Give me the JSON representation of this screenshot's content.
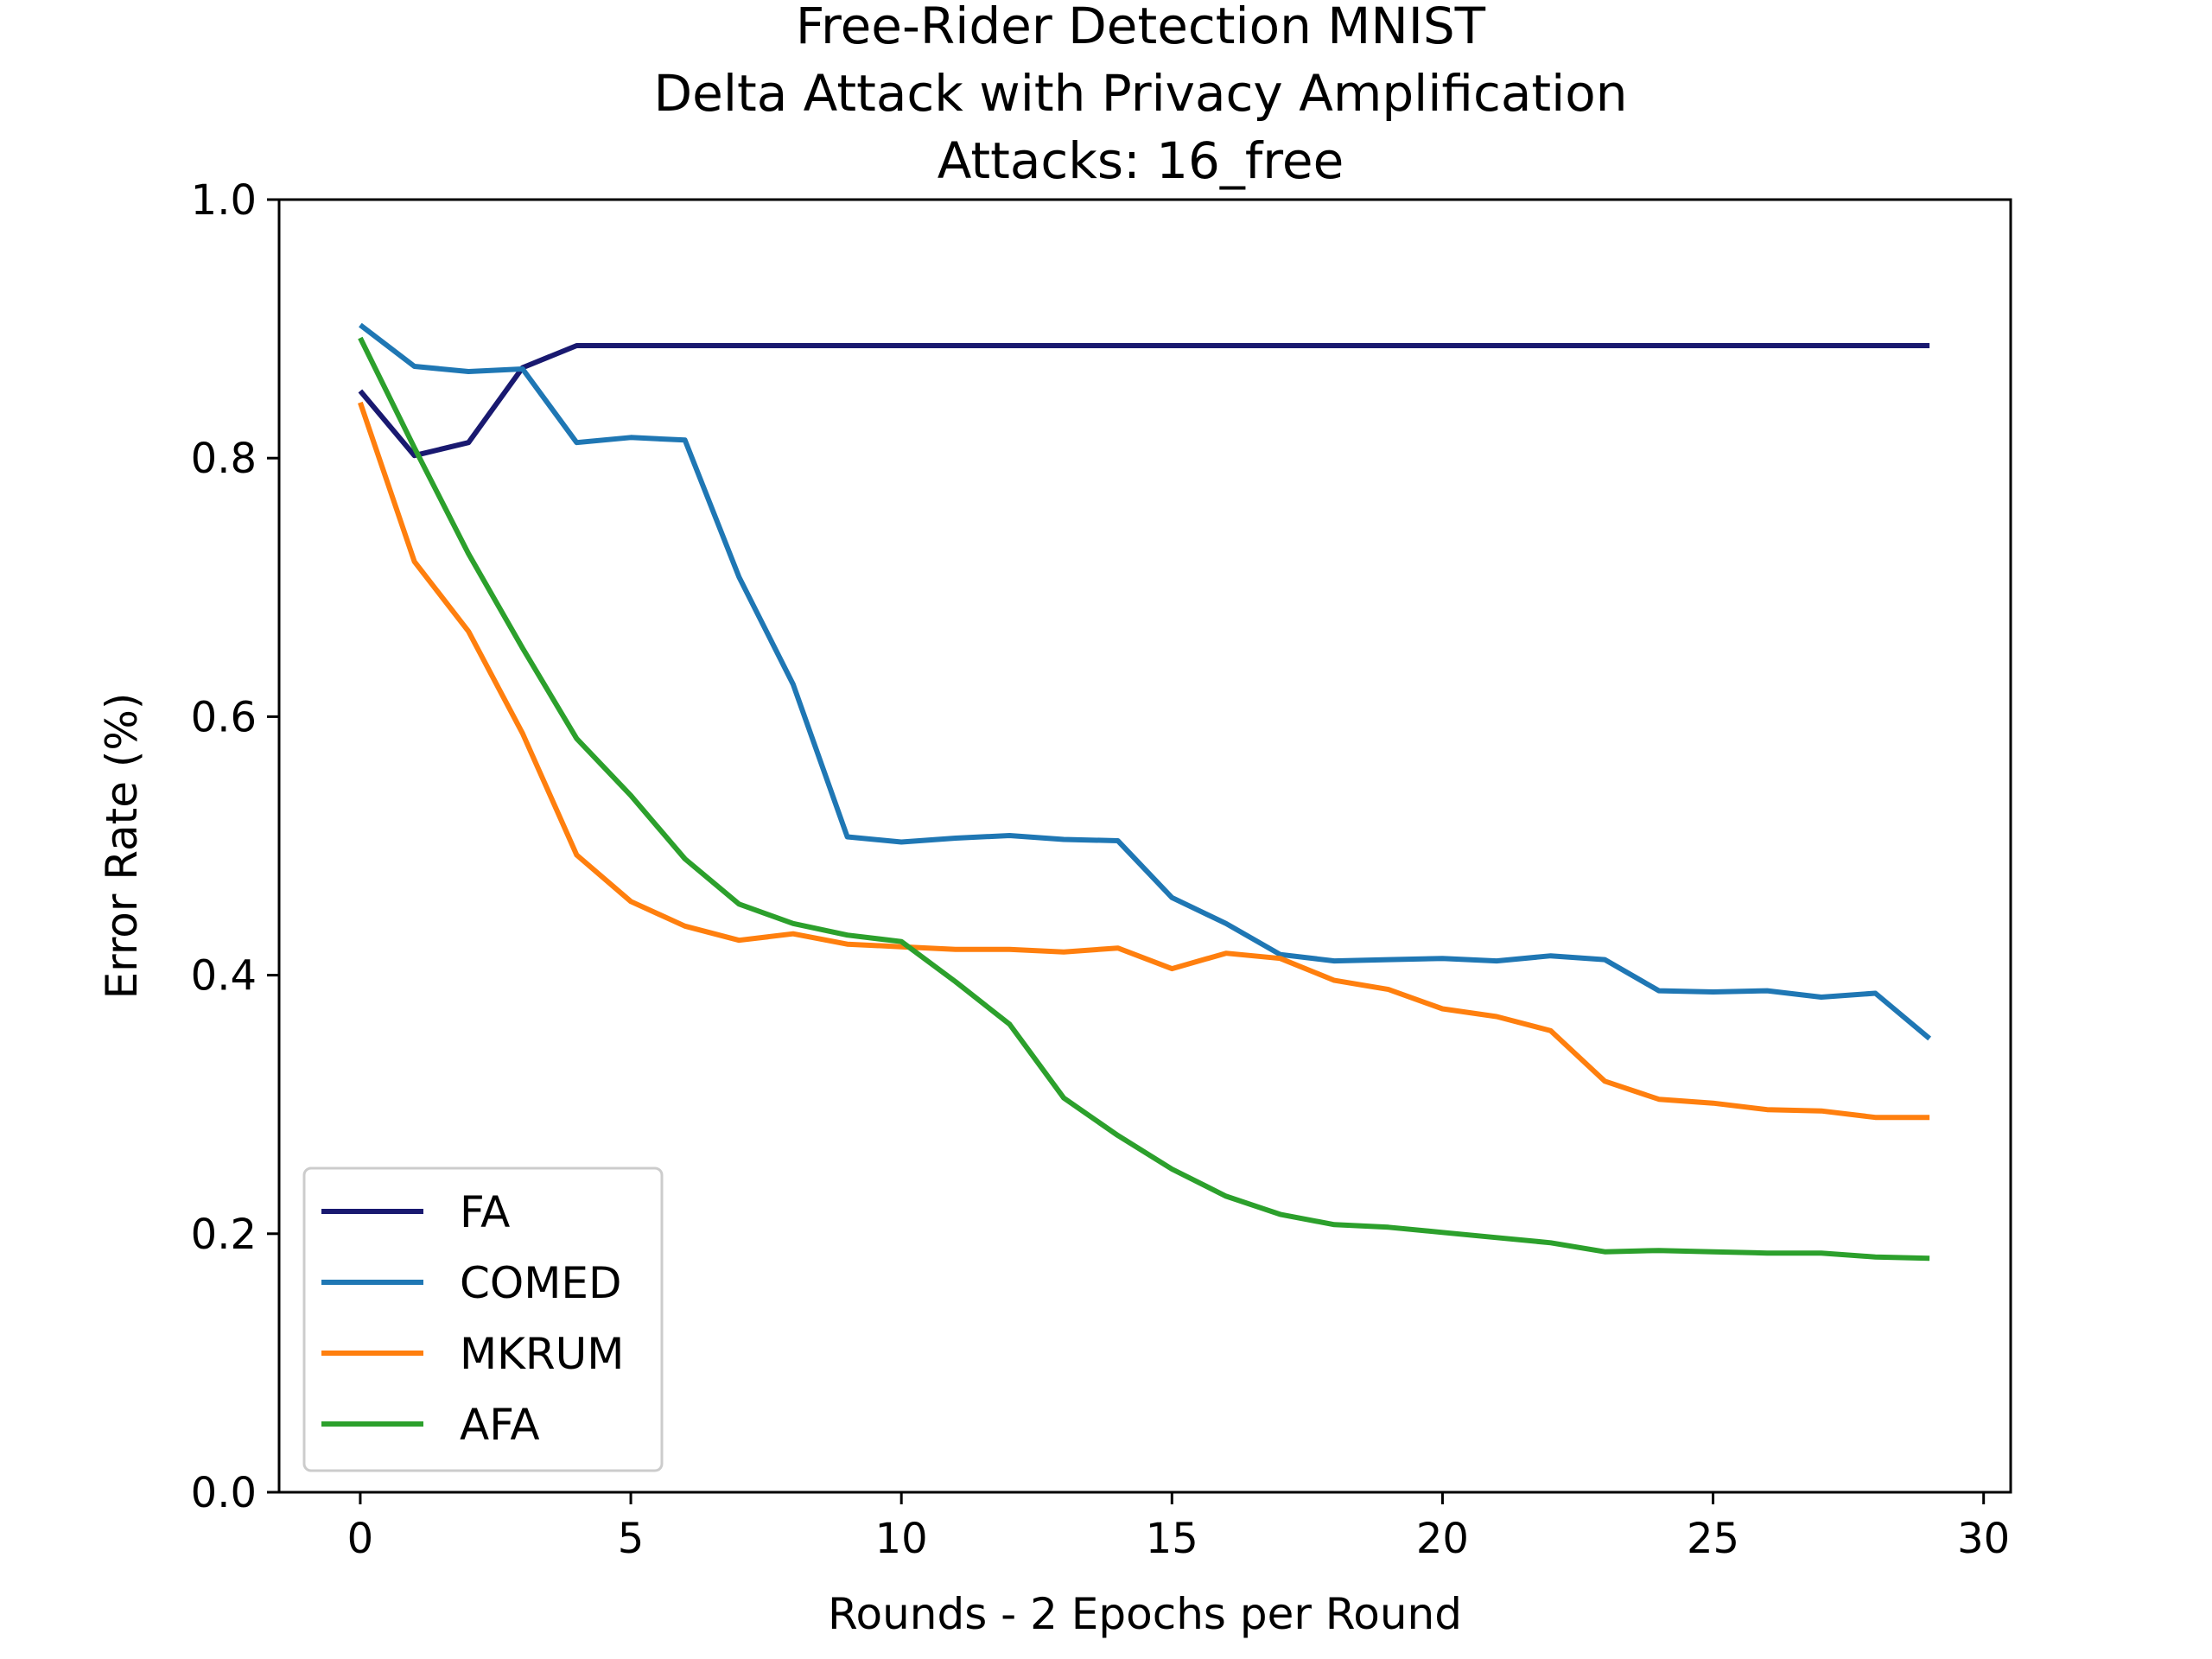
{
  "chart_data": {
    "type": "line",
    "title": [
      "Free-Rider Detection MNIST",
      "Delta Attack with Privacy Amplification",
      "Attacks: 16_free"
    ],
    "xlabel": "Rounds - 2 Epochs per Round",
    "ylabel": "Error Rate (%)",
    "xlim": [
      -1.5,
      30.5
    ],
    "ylim": [
      0.0,
      1.0
    ],
    "xticks": [
      0,
      5,
      10,
      15,
      20,
      25,
      30
    ],
    "xtick_labels": [
      "0",
      "5",
      "10",
      "15",
      "20",
      "25",
      "30"
    ],
    "yticks": [
      0.0,
      0.2,
      0.4,
      0.6,
      0.8,
      1.0
    ],
    "ytick_labels": [
      "0.0",
      "0.2",
      "0.4",
      "0.6",
      "0.8",
      "1.0"
    ],
    "grid": false,
    "legend_position": "lower-left",
    "x": [
      0,
      1,
      2,
      3,
      4,
      5,
      6,
      7,
      8,
      9,
      10,
      11,
      12,
      13,
      14,
      15,
      16,
      17,
      18,
      19,
      20,
      21,
      22,
      23,
      24,
      25,
      26,
      27,
      28,
      29
    ],
    "series": [
      {
        "name": "FA",
        "color": "#191970",
        "values": [
          0.852,
          0.802,
          0.812,
          0.87,
          0.887,
          0.887,
          0.887,
          0.887,
          0.887,
          0.887,
          0.887,
          0.887,
          0.887,
          0.887,
          0.887,
          0.887,
          0.887,
          0.887,
          0.887,
          0.887,
          0.887,
          0.887,
          0.887,
          0.887,
          0.887,
          0.887,
          0.887,
          0.887,
          0.887,
          0.887
        ]
      },
      {
        "name": "COMED",
        "color": "#1f77b4",
        "values": [
          0.903,
          0.871,
          0.867,
          0.869,
          0.812,
          0.816,
          0.814,
          0.708,
          0.625,
          0.507,
          0.503,
          0.506,
          0.508,
          0.505,
          0.504,
          0.46,
          0.44,
          0.416,
          0.411,
          0.412,
          0.413,
          0.411,
          0.415,
          0.412,
          0.388,
          0.387,
          0.388,
          0.383,
          0.386,
          0.351
        ]
      },
      {
        "name": "MKRUM",
        "color": "#ff7f0e",
        "values": [
          0.843,
          0.72,
          0.666,
          0.587,
          0.493,
          0.457,
          0.438,
          0.427,
          0.432,
          0.424,
          0.422,
          0.42,
          0.42,
          0.418,
          0.421,
          0.405,
          0.417,
          0.413,
          0.396,
          0.389,
          0.374,
          0.368,
          0.357,
          0.318,
          0.304,
          0.301,
          0.296,
          0.295,
          0.29,
          0.29
        ]
      },
      {
        "name": "AFA",
        "color": "#2ca02c",
        "values": [
          0.893,
          0.808,
          0.726,
          0.653,
          0.583,
          0.539,
          0.49,
          0.455,
          0.44,
          0.431,
          0.426,
          0.395,
          0.362,
          0.305,
          0.276,
          0.25,
          0.229,
          0.215,
          0.207,
          0.205,
          0.201,
          0.197,
          0.193,
          0.186,
          0.187,
          0.186,
          0.185,
          0.185,
          0.182,
          0.181
        ]
      }
    ]
  }
}
